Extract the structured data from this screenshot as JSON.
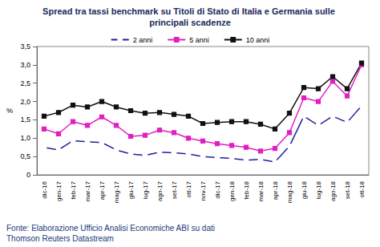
{
  "chart_data": {
    "type": "line",
    "title": "Spread tra tassi benchmark su Titoli di Stato di Italia e Germania sulle principali scadenze",
    "y_label": "%",
    "categories": [
      "dic-16",
      "gen-17",
      "feb-17",
      "mar-17",
      "apr-17",
      "mag-17",
      "giu-17",
      "lug-17",
      "ago-17",
      "set-17",
      "ott-17",
      "nov-17",
      "dic-17",
      "gen-18",
      "feb-18",
      "mar-18",
      "apr-18",
      "mag-18",
      "giu-18",
      "lug-18",
      "ago-18",
      "set-18",
      "ott-18"
    ],
    "series": [
      {
        "name": "2 anni",
        "color": "#1f1f9e",
        "marker": "emptyCircle",
        "values": [
          0.75,
          0.68,
          0.93,
          0.9,
          0.88,
          0.68,
          0.57,
          0.53,
          0.62,
          0.6,
          0.57,
          0.5,
          0.47,
          0.45,
          0.4,
          0.42,
          0.35,
          0.78,
          1.6,
          1.35,
          1.6,
          1.43,
          1.88
        ]
      },
      {
        "name": "5 anni",
        "color": "#e020c0",
        "marker": "square",
        "values": [
          1.25,
          1.12,
          1.45,
          1.35,
          1.58,
          1.35,
          1.05,
          1.08,
          1.22,
          1.15,
          1.0,
          0.92,
          0.85,
          0.8,
          0.75,
          0.65,
          0.72,
          1.15,
          2.1,
          2.0,
          2.55,
          2.15,
          3.0
        ]
      },
      {
        "name": "10 anni",
        "color": "#111111",
        "marker": "square",
        "values": [
          1.6,
          1.7,
          1.9,
          1.85,
          2.0,
          1.85,
          1.75,
          1.68,
          1.7,
          1.65,
          1.6,
          1.4,
          1.43,
          1.45,
          1.45,
          1.38,
          1.25,
          1.68,
          2.38,
          2.35,
          2.68,
          2.35,
          3.05
        ]
      }
    ],
    "ylim": [
      0,
      3.5
    ],
    "yticks": [
      0,
      {
        "value": 0.5,
        "label": "0,5"
      },
      {
        "value": 1,
        "label": "1,0"
      },
      {
        "value": 1.5,
        "label": "1,5"
      },
      {
        "value": 2,
        "label": "2,0"
      },
      {
        "value": 2.5,
        "label": "2,5"
      },
      {
        "value": 3,
        "label": "3,0"
      },
      {
        "value": 3.5,
        "label": "3,5"
      }
    ],
    "grid": false,
    "legend": "top",
    "annotations": [
      "Fonte: Elaborazione Ufficio Analisi Economiche ABI su dati",
      "Thomson Reuters Datastream"
    ]
  }
}
